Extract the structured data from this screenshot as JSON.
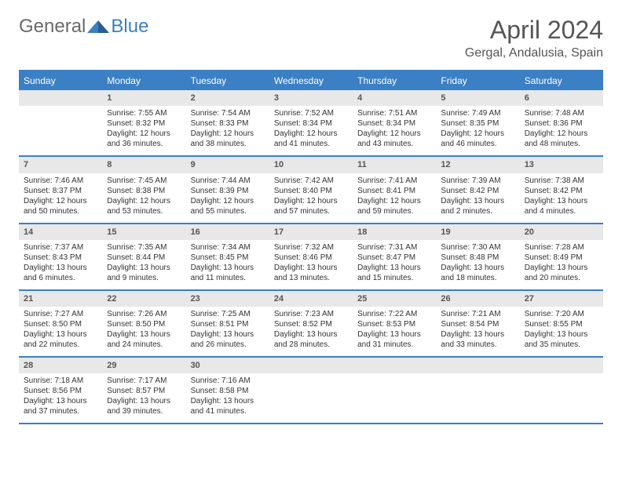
{
  "brand": {
    "name1": "General",
    "name2": "Blue"
  },
  "title": "April 2024",
  "location": "Gergal, Andalusia, Spain",
  "colors": {
    "accent": "#3b7fc4",
    "header_text": "#555555",
    "daynum_bg": "#e8e8e8",
    "body_text": "#333333",
    "background": "#ffffff"
  },
  "dow": [
    "Sunday",
    "Monday",
    "Tuesday",
    "Wednesday",
    "Thursday",
    "Friday",
    "Saturday"
  ],
  "weeks": [
    [
      {
        "n": "",
        "lines": []
      },
      {
        "n": "1",
        "lines": [
          "Sunrise: 7:55 AM",
          "Sunset: 8:32 PM",
          "Daylight: 12 hours and 36 minutes."
        ]
      },
      {
        "n": "2",
        "lines": [
          "Sunrise: 7:54 AM",
          "Sunset: 8:33 PM",
          "Daylight: 12 hours and 38 minutes."
        ]
      },
      {
        "n": "3",
        "lines": [
          "Sunrise: 7:52 AM",
          "Sunset: 8:34 PM",
          "Daylight: 12 hours and 41 minutes."
        ]
      },
      {
        "n": "4",
        "lines": [
          "Sunrise: 7:51 AM",
          "Sunset: 8:34 PM",
          "Daylight: 12 hours and 43 minutes."
        ]
      },
      {
        "n": "5",
        "lines": [
          "Sunrise: 7:49 AM",
          "Sunset: 8:35 PM",
          "Daylight: 12 hours and 46 minutes."
        ]
      },
      {
        "n": "6",
        "lines": [
          "Sunrise: 7:48 AM",
          "Sunset: 8:36 PM",
          "Daylight: 12 hours and 48 minutes."
        ]
      }
    ],
    [
      {
        "n": "7",
        "lines": [
          "Sunrise: 7:46 AM",
          "Sunset: 8:37 PM",
          "Daylight: 12 hours and 50 minutes."
        ]
      },
      {
        "n": "8",
        "lines": [
          "Sunrise: 7:45 AM",
          "Sunset: 8:38 PM",
          "Daylight: 12 hours and 53 minutes."
        ]
      },
      {
        "n": "9",
        "lines": [
          "Sunrise: 7:44 AM",
          "Sunset: 8:39 PM",
          "Daylight: 12 hours and 55 minutes."
        ]
      },
      {
        "n": "10",
        "lines": [
          "Sunrise: 7:42 AM",
          "Sunset: 8:40 PM",
          "Daylight: 12 hours and 57 minutes."
        ]
      },
      {
        "n": "11",
        "lines": [
          "Sunrise: 7:41 AM",
          "Sunset: 8:41 PM",
          "Daylight: 12 hours and 59 minutes."
        ]
      },
      {
        "n": "12",
        "lines": [
          "Sunrise: 7:39 AM",
          "Sunset: 8:42 PM",
          "Daylight: 13 hours and 2 minutes."
        ]
      },
      {
        "n": "13",
        "lines": [
          "Sunrise: 7:38 AM",
          "Sunset: 8:42 PM",
          "Daylight: 13 hours and 4 minutes."
        ]
      }
    ],
    [
      {
        "n": "14",
        "lines": [
          "Sunrise: 7:37 AM",
          "Sunset: 8:43 PM",
          "Daylight: 13 hours and 6 minutes."
        ]
      },
      {
        "n": "15",
        "lines": [
          "Sunrise: 7:35 AM",
          "Sunset: 8:44 PM",
          "Daylight: 13 hours and 9 minutes."
        ]
      },
      {
        "n": "16",
        "lines": [
          "Sunrise: 7:34 AM",
          "Sunset: 8:45 PM",
          "Daylight: 13 hours and 11 minutes."
        ]
      },
      {
        "n": "17",
        "lines": [
          "Sunrise: 7:32 AM",
          "Sunset: 8:46 PM",
          "Daylight: 13 hours and 13 minutes."
        ]
      },
      {
        "n": "18",
        "lines": [
          "Sunrise: 7:31 AM",
          "Sunset: 8:47 PM",
          "Daylight: 13 hours and 15 minutes."
        ]
      },
      {
        "n": "19",
        "lines": [
          "Sunrise: 7:30 AM",
          "Sunset: 8:48 PM",
          "Daylight: 13 hours and 18 minutes."
        ]
      },
      {
        "n": "20",
        "lines": [
          "Sunrise: 7:28 AM",
          "Sunset: 8:49 PM",
          "Daylight: 13 hours and 20 minutes."
        ]
      }
    ],
    [
      {
        "n": "21",
        "lines": [
          "Sunrise: 7:27 AM",
          "Sunset: 8:50 PM",
          "Daylight: 13 hours and 22 minutes."
        ]
      },
      {
        "n": "22",
        "lines": [
          "Sunrise: 7:26 AM",
          "Sunset: 8:50 PM",
          "Daylight: 13 hours and 24 minutes."
        ]
      },
      {
        "n": "23",
        "lines": [
          "Sunrise: 7:25 AM",
          "Sunset: 8:51 PM",
          "Daylight: 13 hours and 26 minutes."
        ]
      },
      {
        "n": "24",
        "lines": [
          "Sunrise: 7:23 AM",
          "Sunset: 8:52 PM",
          "Daylight: 13 hours and 28 minutes."
        ]
      },
      {
        "n": "25",
        "lines": [
          "Sunrise: 7:22 AM",
          "Sunset: 8:53 PM",
          "Daylight: 13 hours and 31 minutes."
        ]
      },
      {
        "n": "26",
        "lines": [
          "Sunrise: 7:21 AM",
          "Sunset: 8:54 PM",
          "Daylight: 13 hours and 33 minutes."
        ]
      },
      {
        "n": "27",
        "lines": [
          "Sunrise: 7:20 AM",
          "Sunset: 8:55 PM",
          "Daylight: 13 hours and 35 minutes."
        ]
      }
    ],
    [
      {
        "n": "28",
        "lines": [
          "Sunrise: 7:18 AM",
          "Sunset: 8:56 PM",
          "Daylight: 13 hours and 37 minutes."
        ]
      },
      {
        "n": "29",
        "lines": [
          "Sunrise: 7:17 AM",
          "Sunset: 8:57 PM",
          "Daylight: 13 hours and 39 minutes."
        ]
      },
      {
        "n": "30",
        "lines": [
          "Sunrise: 7:16 AM",
          "Sunset: 8:58 PM",
          "Daylight: 13 hours and 41 minutes."
        ]
      },
      {
        "n": "",
        "lines": []
      },
      {
        "n": "",
        "lines": []
      },
      {
        "n": "",
        "lines": []
      },
      {
        "n": "",
        "lines": []
      }
    ]
  ]
}
